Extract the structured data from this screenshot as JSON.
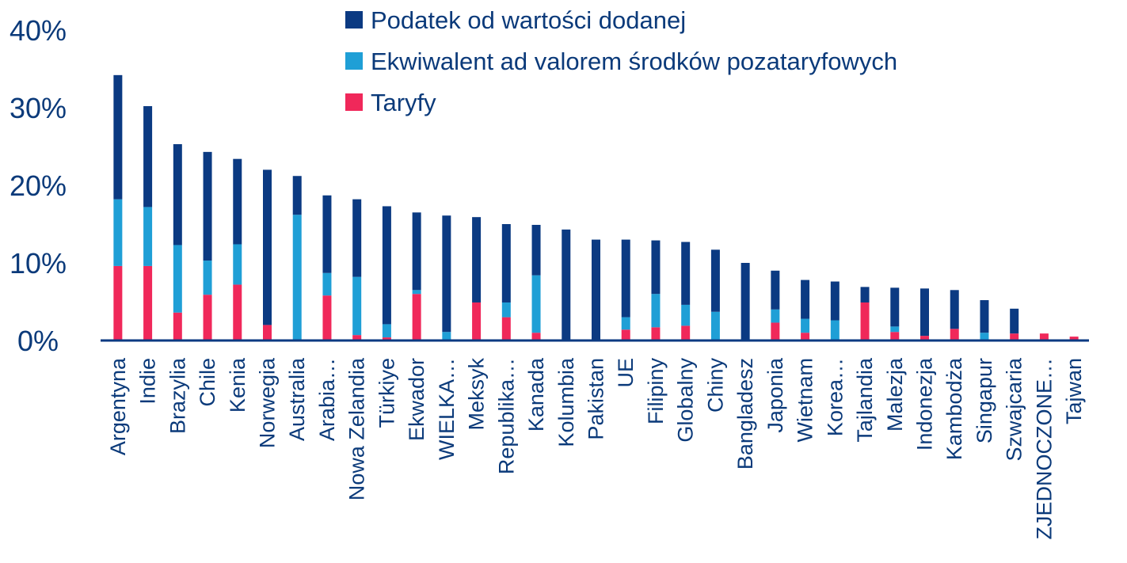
{
  "chart_data": {
    "type": "bar",
    "stacked": true,
    "categories": [
      "Argentyna",
      "Indie",
      "Brazylia",
      "Chile",
      "Kenia",
      "Norwegia",
      "Australia",
      "Arabia…",
      "Nowa Zelandia",
      "Türkiye",
      "Ekwador",
      "WIELKA…",
      "Meksyk",
      "Republika…",
      "Kanada",
      "Kolumbia",
      "Pakistan",
      "UE",
      "Filipiny",
      "Globalny",
      "Chiny",
      "Bangladesz",
      "Japonia",
      "Wietnam",
      "Korea…",
      "Tajlandia",
      "Malezja",
      "Indonezja",
      "Kambodża",
      "Singapur",
      "Szwajcaria",
      "ZJEDNOCZONE…",
      "Tajwan"
    ],
    "series": [
      {
        "name": "Taryfy",
        "color": "#f0285a",
        "values": [
          9.6,
          9.6,
          3.6,
          5.9,
          7.2,
          2.0,
          0.0,
          5.8,
          0.7,
          0.4,
          6.0,
          0.0,
          4.9,
          3.0,
          1.0,
          0.0,
          0.0,
          1.4,
          1.7,
          1.9,
          0.0,
          0.0,
          2.3,
          1.0,
          0.0,
          4.9,
          1.1,
          0.6,
          1.5,
          0.0,
          0.9,
          0.9,
          0.5
        ]
      },
      {
        "name": "Ekwiwalent ad valorem środków pozataryfowych",
        "color": "#1f9fd6",
        "values": [
          8.6,
          7.6,
          8.7,
          4.4,
          5.2,
          0.0,
          16.2,
          2.9,
          7.5,
          1.7,
          0.5,
          1.1,
          0.0,
          1.9,
          7.4,
          0.0,
          0.0,
          1.6,
          4.3,
          2.7,
          3.7,
          0.0,
          1.7,
          1.8,
          2.6,
          0.0,
          0.7,
          0.0,
          0.0,
          1.0,
          0.0,
          0.0,
          0.0
        ]
      },
      {
        "name": "Podatek od wartości dodanej",
        "color": "#0b3a82",
        "values": [
          16.0,
          13.0,
          13.0,
          14.0,
          11.0,
          20.0,
          5.0,
          10.0,
          10.0,
          15.2,
          10.0,
          15.0,
          11.0,
          10.1,
          6.5,
          14.3,
          13.0,
          10.0,
          6.9,
          8.1,
          8.0,
          10.0,
          5.0,
          5.0,
          5.0,
          2.0,
          5.0,
          6.1,
          5.0,
          4.2,
          3.2,
          0.0,
          0.0
        ]
      }
    ],
    "legend_order": [
      "Podatek od wartości dodanej",
      "Ekwiwalent ad valorem środków pozataryfowych",
      "Taryfy"
    ],
    "legend_position": "top-right",
    "ylim": [
      0,
      40
    ],
    "yticks": [
      0,
      10,
      20,
      30,
      40
    ],
    "ytick_labels": [
      "0%",
      "10%",
      "20%",
      "30%",
      "40%"
    ],
    "title": "",
    "xlabel": "",
    "ylabel": "",
    "grid": false,
    "axis_color": "#0b3a82"
  }
}
